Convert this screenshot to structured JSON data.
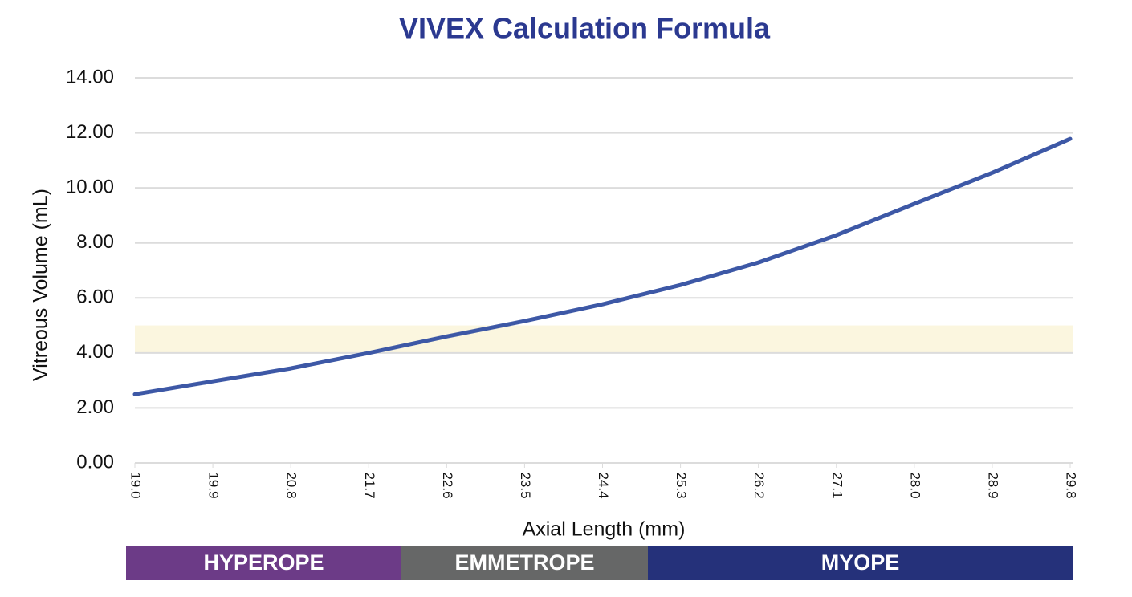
{
  "chart_data": {
    "type": "line",
    "title": "VIVEX Calculation Formula",
    "x_label": "Axial Length (mm)",
    "y_label": "Vitreous Volume (mL)",
    "x": [
      19.0,
      19.9,
      20.8,
      21.7,
      22.6,
      23.5,
      24.4,
      25.3,
      26.2,
      27.1,
      28.0,
      28.9,
      29.8
    ],
    "values": [
      2.5,
      2.97,
      3.44,
      4.0,
      4.6,
      5.16,
      5.77,
      6.47,
      7.29,
      8.28,
      9.42,
      10.55,
      11.78
    ],
    "color": "#3d58a6",
    "xlim": [
      19.0,
      29.8
    ],
    "xticks": [
      {
        "value": 19.0,
        "label": "19.0"
      },
      19.9,
      20.8,
      21.7,
      22.6,
      23.5,
      24.4,
      25.3,
      26.2,
      27.1,
      {
        "value": 28.0,
        "label": "28.0"
      },
      28.9,
      29.8
    ],
    "ylim": [
      0,
      14
    ],
    "yticks": [
      {
        "value": 0,
        "label": "0.00"
      },
      {
        "value": 2,
        "label": "2.00"
      },
      {
        "value": 4,
        "label": "4.00"
      },
      {
        "value": 6,
        "label": "6.00"
      },
      {
        "value": 8,
        "label": "8.00"
      },
      {
        "value": 10,
        "label": "10.00"
      },
      {
        "value": 12,
        "label": "12.00"
      },
      {
        "value": 14,
        "label": "14.00"
      }
    ],
    "grid": true,
    "shaded_range": [
      4,
      5
    ],
    "shaded_color": "#fbf6df",
    "segments": [
      {
        "label": "HYPEROPE",
        "color": "#6c3b87"
      },
      {
        "label": "EMMETROPE",
        "color": "#666767"
      },
      {
        "label": "MYOPE",
        "color": "#25317a"
      }
    ]
  }
}
